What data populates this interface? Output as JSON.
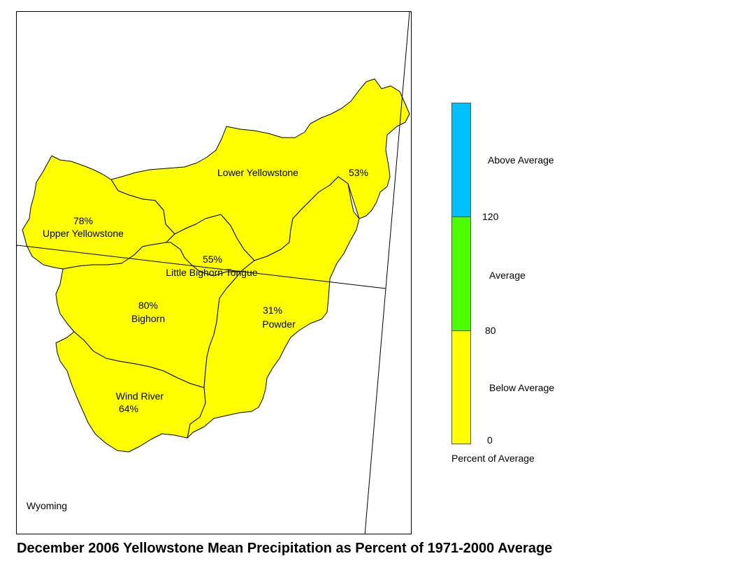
{
  "colors": {
    "basin_fill": "#ffff00",
    "basin_stroke": "#000000",
    "above_average": "#00c0ff",
    "average": "#4cff00",
    "below_average": "#ffff00"
  },
  "basins": [
    {
      "name": "Lower Yellowstone",
      "value": "53%"
    },
    {
      "name": "Upper Yellowstone",
      "value": "78%"
    },
    {
      "name": "Little Bighorn Tongue",
      "value": "55%"
    },
    {
      "name": "Bighorn",
      "value": "80%"
    },
    {
      "name": "Powder",
      "value": "31%"
    },
    {
      "name": "Wind River",
      "value": "64%"
    }
  ],
  "state_label": "Wyoming",
  "legend": {
    "above_label": "Above Average",
    "average_label": "Average",
    "below_label": "Below Average",
    "tick_120": "120",
    "tick_80": "80",
    "tick_0": "0",
    "caption": "Percent of Average"
  },
  "title": "December 2006 Yellowstone Mean Precipitation as Percent of 1971-2000 Average"
}
